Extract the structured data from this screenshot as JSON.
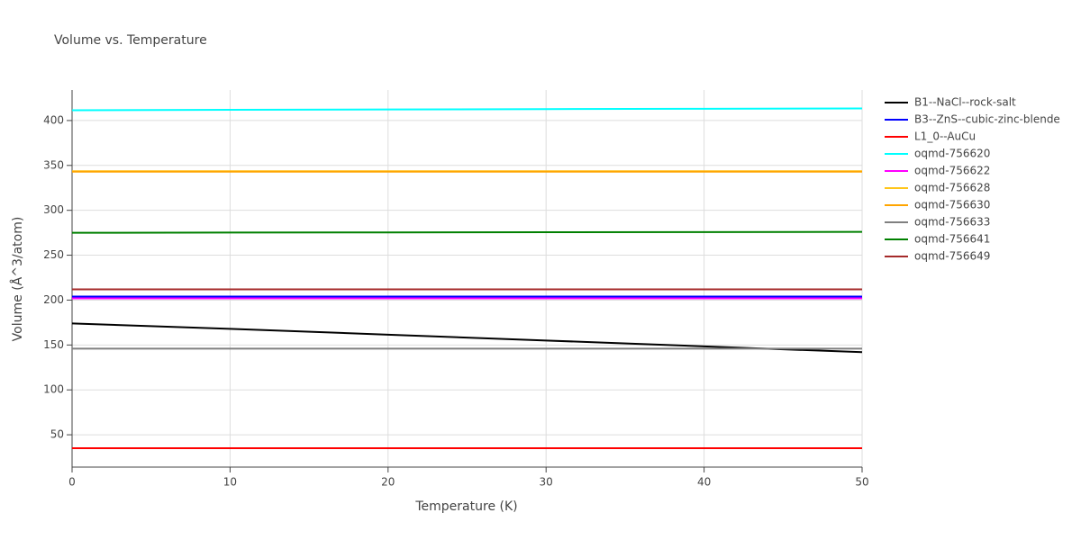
{
  "chart_data": {
    "type": "line",
    "title": "Volume vs. Temperature",
    "x_label": "Temperature (K)",
    "y_label": "Volume (Å^3/atom)",
    "x": [
      0,
      10,
      20,
      30,
      40,
      50
    ],
    "xlim": [
      0,
      50
    ],
    "xticks": [
      0,
      10,
      20,
      30,
      40,
      50
    ],
    "ylim": [
      14,
      434
    ],
    "yticks": [
      50,
      100,
      150,
      200,
      250,
      300,
      350,
      400
    ],
    "grid": true,
    "legend": "right",
    "series": [
      {
        "name": "B1--NaCl--rock-salt",
        "color": "#000000",
        "values": [
          174,
          168,
          161.5,
          155,
          148.5,
          142
        ]
      },
      {
        "name": "B3--ZnS--cubic-zinc-blende",
        "color": "#0000ff",
        "values": [
          204,
          204,
          204,
          204,
          204,
          204
        ]
      },
      {
        "name": "L1_0--AuCu",
        "color": "#ff0000",
        "values": [
          35,
          35,
          35,
          35,
          35,
          35
        ]
      },
      {
        "name": "oqmd-756620",
        "color": "#00ffff",
        "values": [
          411.5,
          411.9,
          412.3,
          412.7,
          413.1,
          413.5
        ]
      },
      {
        "name": "oqmd-756622",
        "color": "#ff00ff",
        "values": [
          202,
          202,
          202,
          202,
          202,
          202
        ]
      },
      {
        "name": "oqmd-756628",
        "color": "#ffc61a",
        "values": [
          343.5,
          343.5,
          343.5,
          343.5,
          343.5,
          343.5
        ]
      },
      {
        "name": "oqmd-756630",
        "color": "#ffa500",
        "values": [
          343,
          343,
          343,
          343,
          343,
          343
        ]
      },
      {
        "name": "oqmd-756633",
        "color": "#808080",
        "values": [
          146,
          146,
          146,
          146,
          146,
          146
        ]
      },
      {
        "name": "oqmd-756641",
        "color": "#008000",
        "values": [
          275,
          275.2,
          275.4,
          275.6,
          275.8,
          276
        ]
      },
      {
        "name": "oqmd-756649",
        "color": "#a52a2a",
        "values": [
          212,
          212,
          212,
          212,
          212,
          212
        ]
      }
    ]
  }
}
